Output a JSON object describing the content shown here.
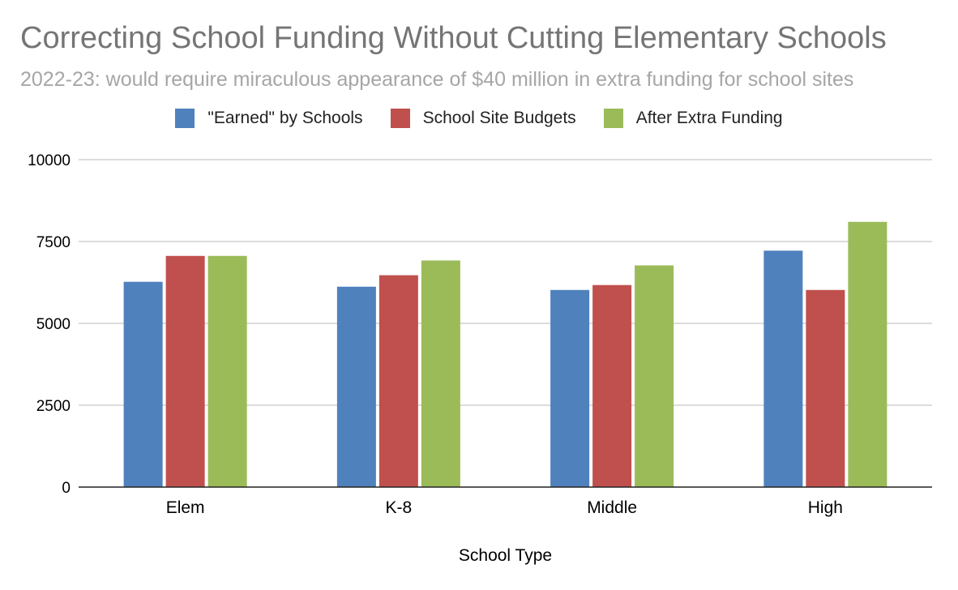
{
  "chart_data": {
    "type": "bar",
    "title": "Correcting School Funding Without Cutting Elementary Schools",
    "subtitle": "2022-23: would require miraculous appearance of $40 million in extra funding for school sites",
    "xlabel": "School Type",
    "ylabel": "",
    "categories": [
      "Elem",
      "K-8",
      "Middle",
      "High"
    ],
    "ylim": [
      0,
      10000
    ],
    "yticks": [
      0,
      2500,
      5000,
      7500,
      10000
    ],
    "grid": true,
    "legend_position": "top",
    "series": [
      {
        "name": "\"Earned\" by Schools",
        "color": "#4f81bd",
        "values": [
          6270,
          6120,
          6020,
          7220
        ]
      },
      {
        "name": "School Site Budgets",
        "color": "#c0504d",
        "values": [
          7060,
          6470,
          6170,
          6020
        ]
      },
      {
        "name": "After Extra Funding",
        "color": "#9bbb59",
        "values": [
          7060,
          6920,
          6770,
          8100
        ]
      }
    ]
  }
}
